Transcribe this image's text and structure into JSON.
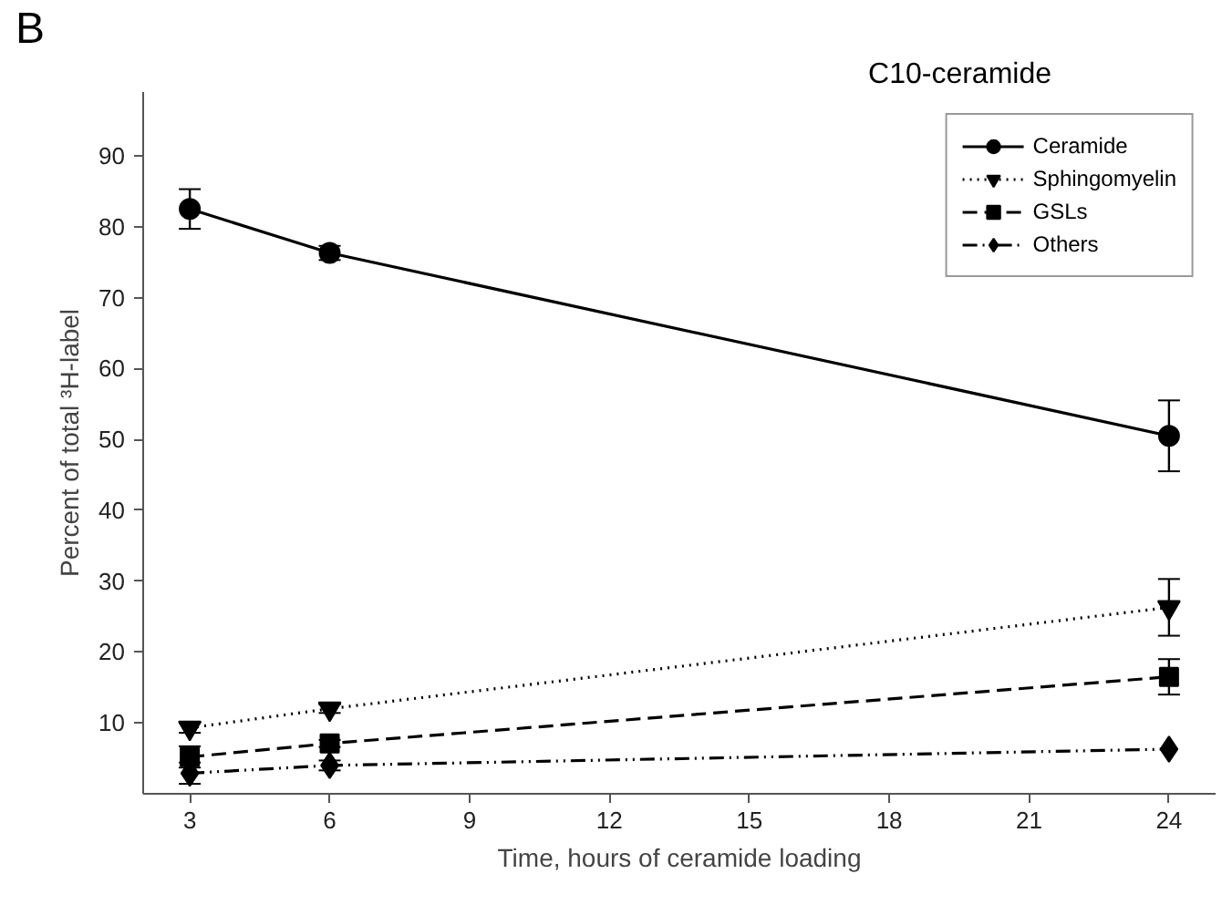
{
  "chart_data": {
    "type": "line",
    "title": "C10-ceramide",
    "xlabel": "Time, hours of ceramide loading",
    "ylabel": "Percent of total ³H-label",
    "annotations": [
      "B"
    ],
    "x": [
      3,
      6,
      24
    ],
    "xlim": [
      2,
      25
    ],
    "xticks": [
      3,
      6,
      9,
      12,
      15,
      18,
      21,
      24
    ],
    "ylim": [
      0,
      99
    ],
    "yticks": [
      10,
      20,
      30,
      40,
      50,
      60,
      70,
      80,
      90
    ],
    "grid": false,
    "legend": "top right",
    "series": [
      {
        "name": "Ceramide",
        "color": "#000000",
        "marker": "circle",
        "line_style": "solid",
        "values": [
          82.5,
          76.3,
          50.5
        ],
        "errors": [
          2.8,
          1.0,
          5.0
        ]
      },
      {
        "name": "Sphingomyelin",
        "color": "#000000",
        "marker": "triangle",
        "line_style": "dotted",
        "values": [
          9.3,
          12.0,
          26.3
        ],
        "errors": [
          0.7,
          0.6,
          4.0
        ]
      },
      {
        "name": "GSLs",
        "color": "#000000",
        "marker": "square",
        "line_style": "dashed",
        "values": [
          5.2,
          7.1,
          16.5
        ],
        "errors": [
          1.5,
          0.5,
          2.5
        ]
      },
      {
        "name": "Others",
        "color": "#000000",
        "marker": "diamond",
        "line_style": "dashdot",
        "values": [
          2.9,
          4.0,
          6.3
        ],
        "errors": [
          1.5,
          0.7,
          null
        ]
      }
    ]
  }
}
